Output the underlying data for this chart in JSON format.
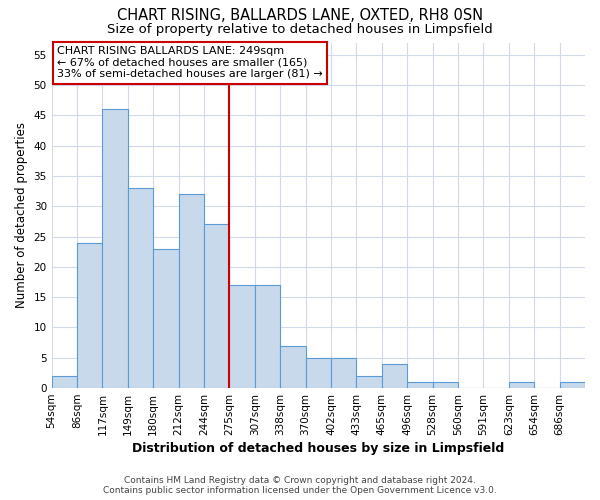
{
  "title": "CHART RISING, BALLARDS LANE, OXTED, RH8 0SN",
  "subtitle": "Size of property relative to detached houses in Limpsfield",
  "xlabel": "Distribution of detached houses by size in Limpsfield",
  "ylabel": "Number of detached properties",
  "bar_labels": [
    "54sqm",
    "86sqm",
    "117sqm",
    "149sqm",
    "180sqm",
    "212sqm",
    "244sqm",
    "275sqm",
    "307sqm",
    "338sqm",
    "370sqm",
    "402sqm",
    "433sqm",
    "465sqm",
    "496sqm",
    "528sqm",
    "560sqm",
    "591sqm",
    "623sqm",
    "654sqm",
    "686sqm"
  ],
  "bar_values": [
    2,
    24,
    46,
    33,
    23,
    32,
    27,
    17,
    17,
    7,
    5,
    5,
    2,
    4,
    1,
    1,
    0,
    0,
    1,
    0,
    1
  ],
  "bar_color": "#c8d9ec",
  "bar_edge_color": "#5b9bd5",
  "reference_line_index": 6,
  "reference_line_color": "#cc0000",
  "annotation_line1": "CHART RISING BALLARDS LANE: 249sqm",
  "annotation_line2": "← 67% of detached houses are smaller (165)",
  "annotation_line3": "33% of semi-detached houses are larger (81) →",
  "annotation_box_color": "#ffffff",
  "annotation_box_edge_color": "#cc0000",
  "ylim": [
    0,
    57
  ],
  "yticks": [
    0,
    5,
    10,
    15,
    20,
    25,
    30,
    35,
    40,
    45,
    50,
    55
  ],
  "background_color": "#ffffff",
  "plot_bg_color": "#ffffff",
  "grid_color": "#d0daea",
  "footer_line1": "Contains HM Land Registry data © Crown copyright and database right 2024.",
  "footer_line2": "Contains public sector information licensed under the Open Government Licence v3.0.",
  "title_fontsize": 10.5,
  "subtitle_fontsize": 9.5,
  "xlabel_fontsize": 9,
  "ylabel_fontsize": 8.5,
  "tick_fontsize": 7.5,
  "annotation_fontsize": 8,
  "footer_fontsize": 6.5
}
